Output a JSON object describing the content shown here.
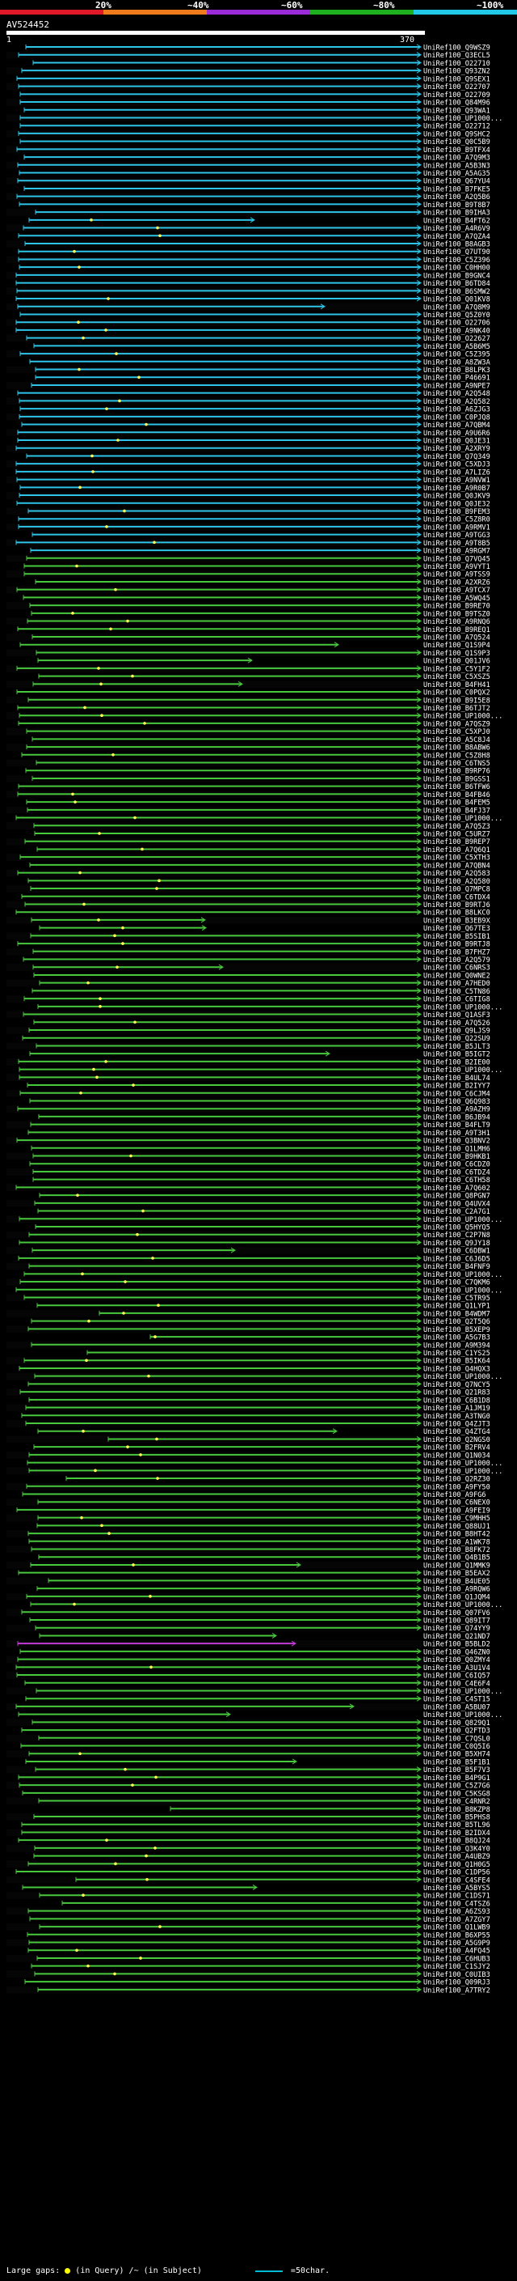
{
  "scale": {
    "labels": [
      "20%",
      "~40%",
      "~60%",
      "~80%",
      "~100%"
    ],
    "segment_colors": [
      "#e0192a",
      "#f07b1d",
      "#9b2ad8",
      "#1fb01f",
      "#22c8e8"
    ]
  },
  "query": {
    "name": "AV524452",
    "start": "1",
    "end": "370"
  },
  "hit_colors": {
    "cyan": "#2ec4e8",
    "green": "#48c83c",
    "magenta": "#c23ad6"
  },
  "hits": [
    "UniRef100_Q9WSZ9",
    "UniRef100_Q3ECL5",
    "UniRef100_O22710",
    "UniRef100_Q93ZN2",
    "UniRef100_Q9SEX1",
    "UniRef100_O22707",
    "UniRef100_O22709",
    "UniRef100_Q84M96",
    "UniRef100_Q93WA1",
    "UniRef100_UP1000...",
    "UniRef100_O22712",
    "UniRef100_Q9SHC2",
    "UniRef100_Q0C5B9",
    "UniRef100_B9TFX4",
    "UniRef100_A7Q9M3",
    "UniRef100_A5B3N3",
    "UniRef100_A5AG35",
    "UniRef100_Q67YU4",
    "UniRef100_B7FKE5",
    "UniRef100_A2Q5B6",
    "UniRef100_B9T8B7",
    "UniRef100_B9IHA3",
    "UniRef100_B4FT62",
    "UniRef100_A4R6V9",
    "UniRef100_A7QZA4",
    "UniRef100_B8AGB3",
    "UniRef100_Q7UT90",
    "UniRef100_C5Z396",
    "UniRef100_C0HH00",
    "UniRef100_B9GNC4",
    "UniRef100_B6TD84",
    "UniRef100_B6SMW2",
    "UniRef100_Q01KV8",
    "UniRef100_A7Q8M9",
    "UniRef100_Q5Z0Y0",
    "UniRef100_O22706",
    "UniRef100_A9NK40",
    "UniRef100_O22627",
    "UniRef100_A5B6M5",
    "UniRef100_C5Z395",
    "UniRef100_A8ZW3A",
    "UniRef100_B8LPK3",
    "UniRef100_P46691",
    "UniRef100_A9NPE7",
    "UniRef100_A2Q548",
    "UniRef100_A2Q582",
    "UniRef100_A6ZJG3",
    "UniRef100_C0PJQ8",
    "UniRef100_A7QBM4",
    "UniRef100_A9U6R6",
    "UniRef100_Q0JE31",
    "UniRef100_A2XRY9",
    "UniRef100_Q7Q349",
    "UniRef100_C5XDJ3",
    "UniRef100_A7LIZ6",
    "UniRef100_A9NVW1",
    "UniRef100_A9R0B7",
    "UniRef100_Q0JKV9",
    "UniRef100_Q0JE32",
    "UniRef100_B9FEM3",
    "UniRef100_C5Z8R0",
    "UniRef100_A9RMV1",
    "UniRef100_A9TGG3",
    "UniRef100_A9T8B5",
    "UniRef100_A9RGM7",
    "UniRef100_Q7VQ45",
    "UniRef100_A9VYT1",
    "UniRef100_A9TSS9",
    "UniRef100_A2XRZ6",
    "UniRef100_A9TCX7",
    "UniRef100_A5WQ45",
    "UniRef100_B9RE70",
    "UniRef100_B9TSZ0",
    "UniRef100_A9RNQ6",
    "UniRef100_B9REQ1",
    "UniRef100_A7Q524",
    "UniRef100_Q1S9P4",
    "UniRef100_Q1S9P3",
    "UniRef100_Q01JV6",
    "UniRef100_C5Y1F2",
    "UniRef100_C5XSZ5",
    "UniRef100_B4FH41",
    "UniRef100_C0PQX2",
    "UniRef100_B9I5E8",
    "UniRef100_B6TJT2",
    "UniRef100_UP1000...",
    "UniRef100_A7QSZ9",
    "UniRef100_C5XPJ0",
    "UniRef100_A5C8J4",
    "UniRef100_B8ABW6",
    "UniRef100_C5Z8H8",
    "UniRef100_C6TNS5",
    "UniRef100_B9RP76",
    "UniRef100_B9GSS1",
    "UniRef100_B6TFW6",
    "UniRef100_B4FB46",
    "UniRef100_B4FEM5",
    "UniRef100_B4FJ37",
    "UniRef100_UP1000...",
    "UniRef100_A7Q5Z3",
    "UniRef100_C5URZ7",
    "UniRef100_B9REP7",
    "UniRef100_A7Q6Q1",
    "UniRef100_C5XTH3",
    "UniRef100_A7QBN4",
    "UniRef100_A2Q583",
    "UniRef100_A2Q580",
    "UniRef100_Q7MPC8",
    "UniRef100_C6TDX4",
    "UniRef100_B9RTJ6",
    "UniRef100_B8LKC0",
    "UniRef100_B3EB9X",
    "UniRef100_Q67TE3",
    "UniRef100_B5SIB1",
    "UniRef100_B9RTJ8",
    "UniRef100_B7FHZ7",
    "UniRef100_A2Q579",
    "UniRef100_C6NRS3",
    "UniRef100_Q0WNE2",
    "UniRef100_A7HED0",
    "UniRef100_C5TN86",
    "UniRef100_C6TIG8",
    "UniRef100_UP1000...",
    "UniRef100_Q1ASF3",
    "UniRef100_A7Q526",
    "UniRef100_Q9LJS9",
    "UniRef100_Q22SU9",
    "UniRef100_B5JLT3",
    "UniRef100_B5IGT2",
    "UniRef100_B2IE00",
    "UniRef100_UP1000...",
    "UniRef100_B4UL74",
    "UniRef100_B2IYY7",
    "UniRef100_C6CJM4",
    "UniRef100_Q6Q983",
    "UniRef100_A9AZH9",
    "UniRef100_B6JB94",
    "UniRef100_B4FLT9",
    "UniRef100_A9T3H1",
    "UniRef100_Q3BNV2",
    "UniRef100_Q1LMH6",
    "UniRef100_B9HKB1",
    "UniRef100_C6CDZ0",
    "UniRef100_C6TDZ4",
    "UniRef100_C6TH58",
    "UniRef100_A7Q602",
    "UniRef100_Q8PGN7",
    "UniRef100_Q4UVX4",
    "UniRef100_C2A7G1",
    "UniRef100_UP1000...",
    "UniRef100_Q5HYQ5",
    "UniRef100_C2P7N8",
    "UniRef100_Q9JY18",
    "UniRef100_C6DBW1",
    "UniRef100_C6J6D5",
    "UniRef100_B4FNF9",
    "UniRef100_UP1000...",
    "UniRef100_C7QKM6",
    "UniRef100_UP1000...",
    "UniRef100_C5TR95",
    "UniRef100_Q1LYP1",
    "UniRef100_B4WDM7",
    "UniRef100_Q2T5Q6",
    "UniRef100_B5XEP9",
    "UniRef100_A5G7B3",
    "UniRef100_A9M394",
    "UniRef100_C1YS25",
    "UniRef100_B5IK64",
    "UniRef100_Q4HQX3",
    "UniRef100_UP1000...",
    "UniRef100_Q7NCY5",
    "UniRef100_Q21R83",
    "UniRef100_C6B1D8",
    "UniRef100_A1JM19",
    "UniRef100_A3TNG0",
    "UniRef100_Q4ZJT3",
    "UniRef100_Q4ZTG4",
    "UniRef100_Q2NGS0",
    "UniRef100_B2FRV4",
    "UniRef100_Q1N034",
    "UniRef100_UP1000...",
    "UniRef100_UP1000...",
    "UniRef100_Q2RZ30",
    "UniRef100_A9FY50",
    "UniRef100_A9FG6",
    "UniRef100_C6NEX0",
    "UniRef100_A9FEI9",
    "UniRef100_C9MHH5",
    "UniRef100_Q88UJ1",
    "UniRef100_B8HT42",
    "UniRef100_A1WK78",
    "UniRef100_B8FK72",
    "UniRef100_Q4B1B5",
    "UniRef100_Q1MMK9",
    "UniRef100_B5EAX2",
    "UniRef100_B4UE05",
    "UniRef100_A9RQW6",
    "UniRef100_Q1JQM4",
    "UniRef100_UP1000...",
    "UniRef100_Q07FV6",
    "UniRef100_Q89IT7",
    "UniRef100_Q74YY9",
    "UniRef100_Q21ND7",
    "UniRef100_B5BLD2",
    "UniRef100_Q46ZN0",
    "UniRef100_Q0ZMY4",
    "UniRef100_A3U1V4",
    "UniRef100_C6IQ57",
    "UniRef100_C4E6F4",
    "UniRef100_UP1000...",
    "UniRef100_C4ST15",
    "UniRef100_A5BU07",
    "UniRef100_UP1000...",
    "UniRef100_Q829Q1",
    "UniRef100_Q2FTD3",
    "UniRef100_C7QSL0",
    "UniRef100_C0Q5I6",
    "UniRef100_B5XH74",
    "UniRef100_B5F1B1",
    "UniRef100_B5F7V3",
    "UniRef100_B4P9G1",
    "UniRef100_C5Z7G6",
    "UniRef100_C5KSG8",
    "UniRef100_C4RNR2",
    "UniRef100_B8KZP8",
    "UniRef100_B5PHS8",
    "UniRef100_B5TL96",
    "UniRef100_B2IDX4",
    "UniRef100_B8QJ24",
    "UniRef100_Q3K4Y0",
    "UniRef100_A4UBZ9",
    "UniRef100_Q1H0G5",
    "UniRef100_C1DP56",
    "UniRef100_C4SFE4",
    "UniRef100_A5BYS5",
    "UniRef100_C1DS71",
    "UniRef100_C4TSZ6",
    "UniRef100_A6ZS93",
    "UniRef100_A7ZGY7",
    "UniRef100_Q1LWB9",
    "UniRef100_B6XP55",
    "UniRef100_A5G9P9",
    "UniRef100_A4FQ45",
    "UniRef100_C6HUB3",
    "UniRef100_C1SJY2",
    "UniRef100_C0UIB3",
    "UniRef100_Q09RJ3",
    "UniRef100_A7TRY2"
  ],
  "footer": {
    "large_gaps_label": "Large gaps:",
    "in_query_label": "(in Query)",
    "in_subject_label": "/~ (in Subject)",
    "legend_label": "=50char."
  }
}
